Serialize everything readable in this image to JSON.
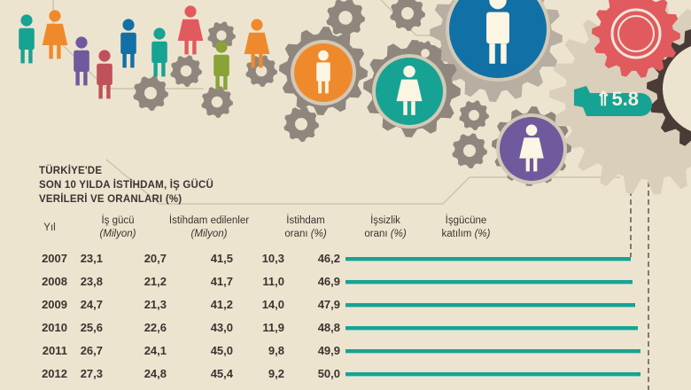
{
  "title_lines": [
    "TÜRKİYE'DE",
    "SON 10 YILDA İSTİHDAM, İŞ GÜCÜ",
    "VERİLERİ VE ORANLARI (%)"
  ],
  "badge": {
    "icon": "up-arrow-icon",
    "arrow": "⇑",
    "value": "5.8"
  },
  "colors": {
    "background": "#ede4cf",
    "teal": "#17a393",
    "orange": "#ef8a2c",
    "blue": "#1170a6",
    "purple": "#6e5a9d",
    "red": "#e15a5e",
    "gear": "#8f877d"
  },
  "chart_data": {
    "type": "table",
    "columns": [
      {
        "label": "Yıl",
        "unit": ""
      },
      {
        "label": "İş gücü",
        "unit": "(Milyon)"
      },
      {
        "label": "İstihdam edilenler",
        "unit": "(Milyon)"
      },
      {
        "label": "İstihdam",
        "label2": "oranı",
        "unit": "(%)"
      },
      {
        "label": "İşsizlik",
        "label2": "oranı",
        "unit": "(%)"
      },
      {
        "label": "İşgücüne",
        "label2": "katılım",
        "unit": "(%)"
      }
    ],
    "rows": [
      [
        "2007",
        "23,1",
        "20,7",
        "41,5",
        "10,3",
        "46,2"
      ],
      [
        "2008",
        "23,8",
        "21,2",
        "41,7",
        "11,0",
        "46,9"
      ],
      [
        "2009",
        "24,7",
        "21,3",
        "41,2",
        "14,0",
        "47,9"
      ],
      [
        "2010",
        "25,6",
        "22,6",
        "43,0",
        "11,9",
        "48,8"
      ],
      [
        "2011",
        "26,7",
        "24,1",
        "45,0",
        "9,8",
        "49,9"
      ],
      [
        "2012",
        "27,3",
        "24,8",
        "45,4",
        "9,2",
        "50,0"
      ]
    ],
    "bar_series": {
      "column": "İşgücüne katılım (%)",
      "values": [
        46.2,
        46.9,
        47.9,
        48.8,
        49.9,
        50.0
      ]
    }
  }
}
